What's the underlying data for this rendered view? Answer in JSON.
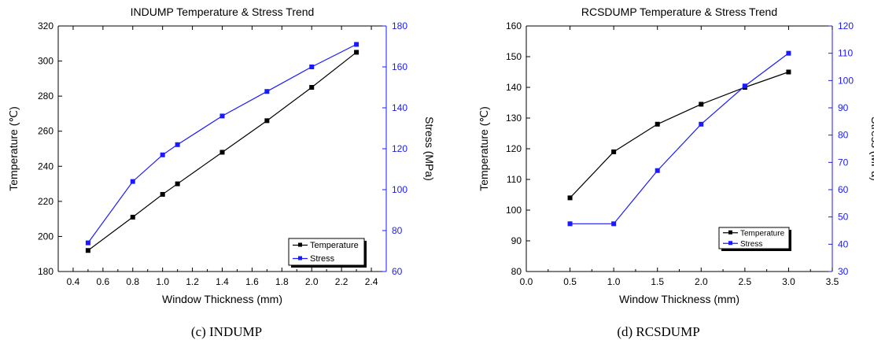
{
  "captions": {
    "c": "(c) INDUMP",
    "d": "(d) RCSDUMP"
  },
  "colors": {
    "temperature": "#000000",
    "stress": "#1a1aff",
    "axis": "#000000",
    "stress_axis": "#1a1aff"
  },
  "chart_data": [
    {
      "type": "line",
      "title": "INDUMP Temperature & Stress Trend",
      "xlabel": "Window Thickness (mm)",
      "ylabel": "Temperature (℃)",
      "y2label": "Stress (MPa)",
      "xlim": [
        0.3,
        2.5
      ],
      "xticks": [
        0.4,
        0.6,
        0.8,
        1.0,
        1.2,
        1.4,
        1.6,
        1.8,
        2.0,
        2.2,
        2.4
      ],
      "xtick_labels": [
        "0.4",
        "0.6",
        "0.8",
        "1.0",
        "1.2",
        "1.4",
        "1.6",
        "1.8",
        "2.0",
        "2.2",
        "2.4"
      ],
      "ylim": [
        180,
        320
      ],
      "yticks": [
        180,
        200,
        220,
        240,
        260,
        280,
        300,
        320
      ],
      "y2lim": [
        60,
        180
      ],
      "y2ticks": [
        60,
        80,
        100,
        120,
        140,
        160,
        180
      ],
      "grid": false,
      "legend_position": "bottom-right",
      "series": [
        {
          "name": "Temperature",
          "axis": "left",
          "x": [
            0.5,
            0.8,
            1.0,
            1.1,
            1.4,
            1.7,
            2.0,
            2.3
          ],
          "y": [
            192,
            211,
            224,
            230,
            248,
            266,
            285,
            305
          ]
        },
        {
          "name": "Stress",
          "axis": "right",
          "x": [
            0.5,
            0.8,
            1.0,
            1.1,
            1.4,
            1.7,
            2.0,
            2.3
          ],
          "y": [
            74,
            104,
            117,
            122,
            136,
            148,
            160,
            171
          ]
        }
      ]
    },
    {
      "type": "line",
      "title": "RCSDUMP Temperature & Stress Trend",
      "xlabel": "Window Thickness (mm)",
      "ylabel": "Temperature (℃)",
      "y2label": "Stress (MPa)",
      "xlim": [
        0.0,
        3.5
      ],
      "xticks": [
        0.0,
        0.5,
        1.0,
        1.5,
        2.0,
        2.5,
        3.0,
        3.5
      ],
      "xtick_labels": [
        "0.0",
        "0.5",
        "1.0",
        "1.5",
        "2.0",
        "2.5",
        "3.0",
        "3.5"
      ],
      "ylim": [
        80,
        160
      ],
      "yticks": [
        80,
        90,
        100,
        110,
        120,
        130,
        140,
        150,
        160
      ],
      "y2lim": [
        30,
        120
      ],
      "y2ticks": [
        30,
        40,
        50,
        60,
        70,
        80,
        90,
        100,
        110,
        120
      ],
      "grid": false,
      "legend_position": "bottom-right",
      "series": [
        {
          "name": "Temperature",
          "axis": "left",
          "x": [
            0.5,
            1.0,
            1.5,
            2.0,
            2.5,
            3.0
          ],
          "y": [
            104,
            119,
            128,
            134.5,
            140,
            145
          ]
        },
        {
          "name": "Stress",
          "axis": "right",
          "x": [
            0.5,
            1.0,
            1.5,
            2.0,
            2.5,
            3.0
          ],
          "y": [
            47.5,
            47.5,
            67,
            84,
            98,
            110
          ]
        }
      ]
    }
  ]
}
